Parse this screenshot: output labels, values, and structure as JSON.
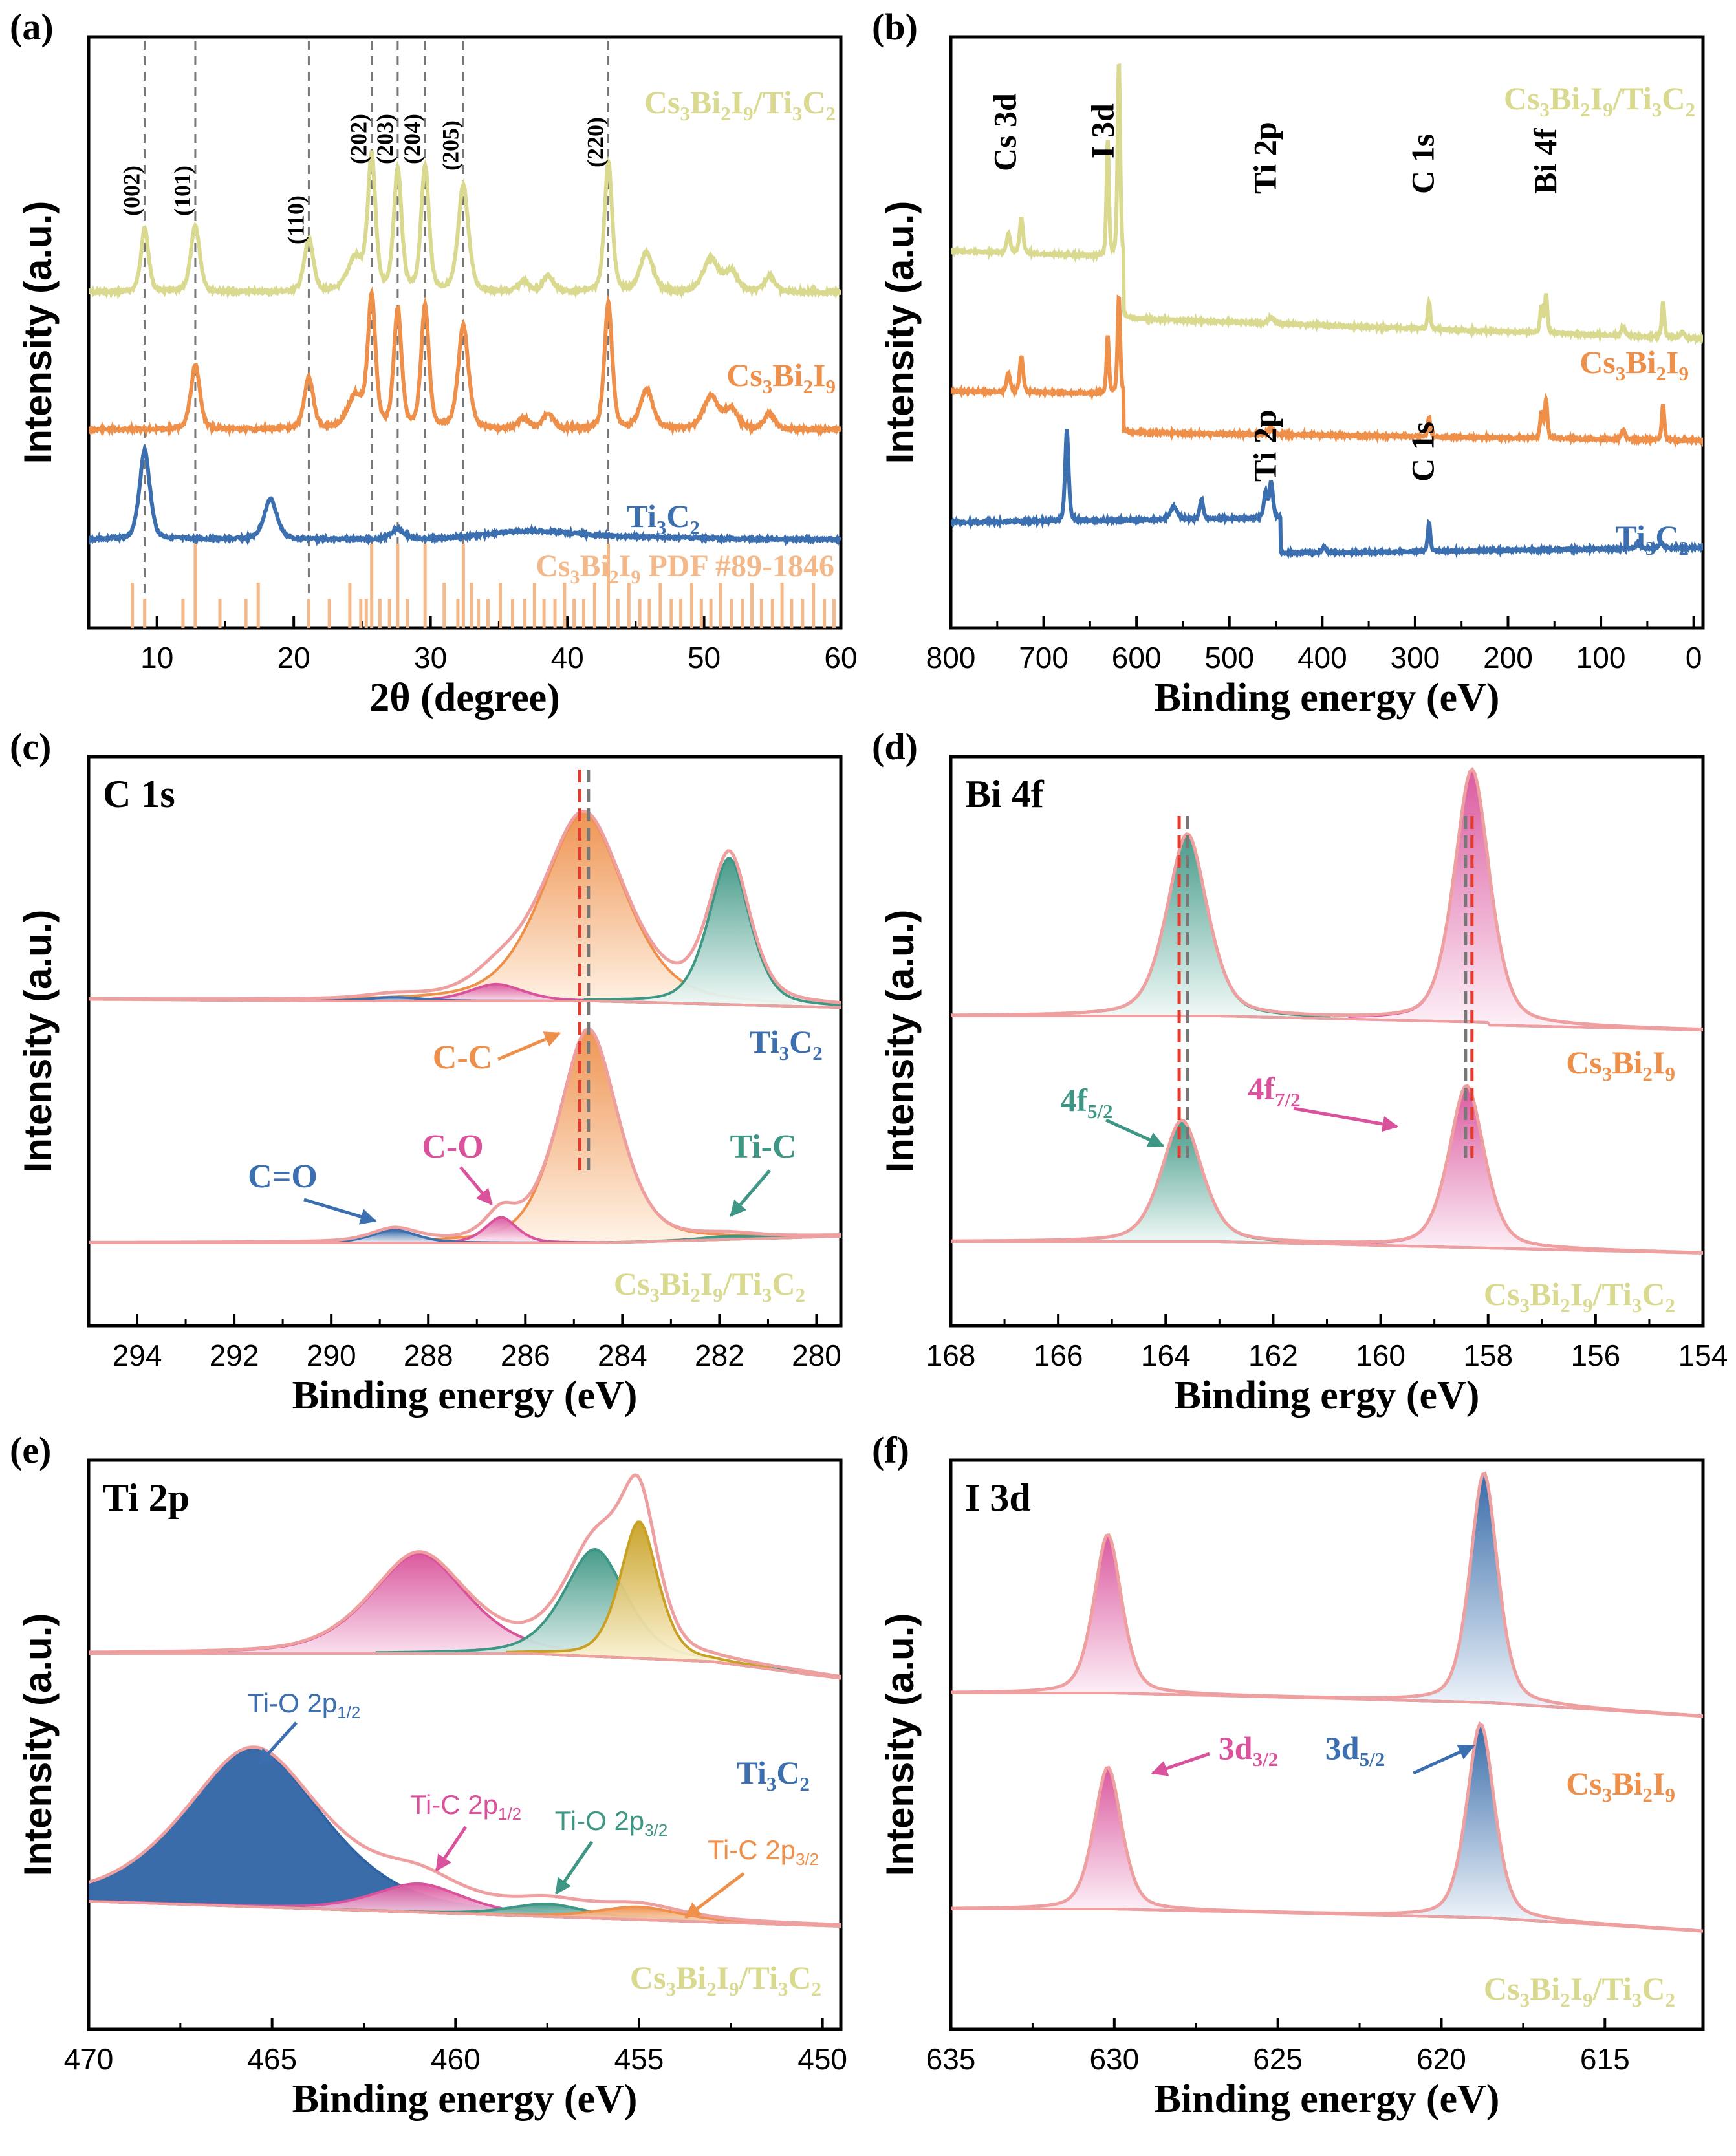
{
  "colors": {
    "yellow": "#d9d98f",
    "orange": "#ee8f4a",
    "blue": "#3b6faf",
    "gray": "#777",
    "red": "#e23b2f",
    "teal": "#3e9684",
    "pink": "#d9529b",
    "ltpink": "#eea0a0",
    "gold": "#c8a023",
    "bar": "#f3b98a",
    "navy": "#2e64a4"
  },
  "panels": [
    {
      "label": "(a)",
      "xlabel": "2θ  (degree)",
      "ylabel": "Intensity (a.u.)",
      "xlim": [
        5,
        60
      ],
      "ticks": [
        10,
        20,
        30,
        40,
        50,
        60
      ],
      "peaks": [
        {
          "x": 9.1,
          "hkl": "(002)"
        },
        {
          "x": 12.8,
          "hkl": "(101)"
        },
        {
          "x": 21.1,
          "hkl": "(110)"
        },
        {
          "x": 25.7,
          "hkl": "(202)"
        },
        {
          "x": 27.6,
          "hkl": "(203)"
        },
        {
          "x": 29.6,
          "hkl": "(204)"
        },
        {
          "x": 32.4,
          "hkl": "(205)"
        },
        {
          "x": 43.0,
          "hkl": "(220)"
        }
      ],
      "series": [
        {
          "name": "Cs3Bi2I9/Ti3C2",
          "parts": [
            [
              "Cs",
              ""
            ],
            [
              "3",
              "sub"
            ],
            [
              "Bi",
              ""
            ],
            [
              "2",
              "sub"
            ],
            [
              "I",
              ""
            ],
            [
              "9",
              "sub"
            ],
            [
              "/Ti",
              ""
            ],
            [
              "3",
              "sub"
            ],
            [
              "C",
              ""
            ],
            [
              "2",
              "sub"
            ]
          ]
        },
        {
          "name": "Cs3Bi2I9",
          "parts": [
            [
              "Cs",
              ""
            ],
            [
              "3",
              "sub"
            ],
            [
              "Bi",
              ""
            ],
            [
              "2",
              "sub"
            ],
            [
              "I",
              ""
            ],
            [
              "9",
              "sub"
            ]
          ]
        },
        {
          "name": "Ti3C2",
          "parts": [
            [
              "Ti",
              ""
            ],
            [
              "3",
              "sub"
            ],
            [
              "C",
              ""
            ],
            [
              "2",
              "sub"
            ]
          ]
        },
        {
          "name": "Cs3Bi2I9 PDF #89-1846",
          "parts": [
            [
              "Cs",
              ""
            ],
            [
              "3",
              "sub"
            ],
            [
              "Bi",
              ""
            ],
            [
              "2",
              "sub"
            ],
            [
              "I",
              ""
            ],
            [
              "9",
              "sub"
            ],
            [
              " PDF #89-1846",
              ""
            ]
          ]
        }
      ],
      "pdf_lines": [
        8.2,
        9.1,
        11.9,
        12.8,
        14.6,
        16.5,
        17.4,
        21.1,
        22.6,
        24.1,
        24.9,
        25.3,
        25.7,
        26.3,
        27.0,
        27.6,
        28.3,
        29.6,
        31.0,
        32.0,
        32.4,
        33.0,
        33.5,
        34.2,
        35.1,
        36.0,
        36.9,
        37.6,
        38.3,
        39.1,
        39.8,
        40.5,
        41.2,
        42.0,
        43.0,
        43.7,
        44.5,
        45.3,
        46.0,
        46.8,
        47.6,
        48.3,
        49.1,
        49.8,
        50.5,
        51.2,
        52.0,
        52.8,
        53.5,
        54.2,
        55.0,
        55.7,
        56.4,
        57.2,
        58.0,
        58.8,
        59.5
      ]
    },
    {
      "label": "(b)",
      "xlabel": "Binding energy (eV)",
      "ylabel": "Intensity (a.u.)",
      "xlim": [
        800,
        -10
      ],
      "ticks": [
        800,
        700,
        600,
        500,
        400,
        300,
        200,
        100,
        0
      ],
      "annotations": [
        "Cs 3d",
        "I 3d",
        "Ti 2p",
        "C 1s",
        "Bi 4f",
        "Ti 2p",
        "C 1s"
      ],
      "series": [
        {
          "name": "Cs3Bi2I9/Ti3C2",
          "parts": [
            [
              "Cs",
              ""
            ],
            [
              "3",
              "sub"
            ],
            [
              "Bi",
              ""
            ],
            [
              "2",
              "sub"
            ],
            [
              "I",
              ""
            ],
            [
              "9",
              "sub"
            ],
            [
              "/Ti",
              ""
            ],
            [
              "3",
              "sub"
            ],
            [
              "C",
              ""
            ],
            [
              "2",
              "sub"
            ]
          ]
        },
        {
          "name": "Cs3Bi2I9",
          "parts": [
            [
              "Cs",
              ""
            ],
            [
              "3",
              "sub"
            ],
            [
              "Bi",
              ""
            ],
            [
              "2",
              "sub"
            ],
            [
              "I",
              ""
            ],
            [
              "9",
              "sub"
            ]
          ]
        },
        {
          "name": "Ti3C2",
          "parts": [
            [
              "Ti",
              ""
            ],
            [
              "3",
              "sub"
            ],
            [
              "C",
              ""
            ],
            [
              "2",
              "sub"
            ]
          ]
        }
      ]
    },
    {
      "label": "(c)",
      "title": "C 1s",
      "xlabel": "Binding energy (eV)",
      "ylabel": "Intensity (a.u.)",
      "xlim": [
        295,
        279.5
      ],
      "ticks": [
        294,
        292,
        290,
        288,
        286,
        284,
        282,
        280
      ],
      "components": [
        "C-C",
        "C-O",
        "C=O",
        "Ti-C"
      ],
      "series": [
        {
          "name": "Ti3C2",
          "parts": [
            [
              "Ti",
              ""
            ],
            [
              "3",
              "sub"
            ],
            [
              "C",
              ""
            ],
            [
              "2",
              "sub"
            ]
          ]
        },
        {
          "name": "Cs3Bi2I9/Ti3C2",
          "parts": [
            [
              "Cs",
              ""
            ],
            [
              "3",
              "sub"
            ],
            [
              "Bi",
              ""
            ],
            [
              "2",
              "sub"
            ],
            [
              "I",
              ""
            ],
            [
              "9",
              "sub"
            ],
            [
              "/Ti",
              ""
            ],
            [
              "3",
              "sub"
            ],
            [
              "C",
              ""
            ],
            [
              "2",
              "sub"
            ]
          ]
        }
      ]
    },
    {
      "label": "(d)",
      "title": "Bi 4f",
      "xlabel": "Binding ergy (eV)",
      "ylabel": "Intensity (a.u.)",
      "xlim": [
        168,
        154
      ],
      "ticks": [
        168,
        166,
        164,
        162,
        160,
        158,
        156,
        154
      ],
      "components": [
        {
          "parts": [
            [
              "4f",
              ""
            ],
            [
              "5/2",
              "sub"
            ]
          ]
        },
        {
          "parts": [
            [
              "4f",
              ""
            ],
            [
              "7/2",
              "sub"
            ]
          ]
        }
      ],
      "series": [
        {
          "name": "Cs3Bi2I9",
          "parts": [
            [
              "Cs",
              ""
            ],
            [
              "3",
              "sub"
            ],
            [
              "Bi",
              ""
            ],
            [
              "2",
              "sub"
            ],
            [
              "I",
              ""
            ],
            [
              "9",
              "sub"
            ]
          ]
        },
        {
          "name": "Cs3Bi2I9/Ti3C2",
          "parts": [
            [
              "Cs",
              ""
            ],
            [
              "3",
              "sub"
            ],
            [
              "Bi",
              ""
            ],
            [
              "2",
              "sub"
            ],
            [
              "I",
              ""
            ],
            [
              "9",
              "sub"
            ],
            [
              "/Ti",
              ""
            ],
            [
              "3",
              "sub"
            ],
            [
              "C",
              ""
            ],
            [
              "2",
              "sub"
            ]
          ]
        }
      ]
    },
    {
      "label": "(e)",
      "title": "Ti 2p",
      "xlabel": "Binding energy (eV)",
      "ylabel": "Intensity (a.u.)",
      "xlim": [
        470,
        449.5
      ],
      "ticks": [
        470,
        465,
        460,
        455,
        450
      ],
      "components": [
        {
          "parts": [
            [
              "Ti-O 2p",
              ""
            ],
            [
              "1/2",
              "sub"
            ]
          ]
        },
        {
          "parts": [
            [
              "Ti-C 2p",
              ""
            ],
            [
              "1/2",
              "sub"
            ]
          ]
        },
        {
          "parts": [
            [
              "Ti-O 2p",
              ""
            ],
            [
              "3/2",
              "sub"
            ]
          ]
        },
        {
          "parts": [
            [
              "Ti-C 2p",
              ""
            ],
            [
              "3/2",
              "sub"
            ]
          ]
        }
      ],
      "series": [
        {
          "name": "Ti3C2",
          "parts": [
            [
              "Ti",
              ""
            ],
            [
              "3",
              "sub"
            ],
            [
              "C",
              ""
            ],
            [
              "2",
              "sub"
            ]
          ]
        },
        {
          "name": "Cs3Bi2I9/Ti3C2",
          "parts": [
            [
              "Cs",
              ""
            ],
            [
              "3",
              "sub"
            ],
            [
              "Bi",
              ""
            ],
            [
              "2",
              "sub"
            ],
            [
              "I",
              ""
            ],
            [
              "9",
              "sub"
            ],
            [
              "/Ti",
              ""
            ],
            [
              "3",
              "sub"
            ],
            [
              "C",
              ""
            ],
            [
              "2",
              "sub"
            ]
          ]
        }
      ]
    },
    {
      "label": "(f)",
      "title": "I 3d",
      "xlabel": "Binding energy (eV)",
      "ylabel": "Intensity (a.u.)",
      "xlim": [
        635,
        612
      ],
      "ticks": [
        635,
        630,
        625,
        620,
        615
      ],
      "components": [
        {
          "parts": [
            [
              "3d",
              ""
            ],
            [
              "3/2",
              "sub"
            ]
          ]
        },
        {
          "parts": [
            [
              "3d",
              ""
            ],
            [
              "5/2",
              "sub"
            ]
          ]
        }
      ],
      "series": [
        {
          "name": "Cs3Bi2I9",
          "parts": [
            [
              "Cs",
              ""
            ],
            [
              "3",
              "sub"
            ],
            [
              "Bi",
              ""
            ],
            [
              "2",
              "sub"
            ],
            [
              "I",
              ""
            ],
            [
              "9",
              "sub"
            ]
          ]
        },
        {
          "name": "Cs3Bi2I9/Ti3C2",
          "parts": [
            [
              "Cs",
              ""
            ],
            [
              "3",
              "sub"
            ],
            [
              "Bi",
              ""
            ],
            [
              "2",
              "sub"
            ],
            [
              "I",
              ""
            ],
            [
              "9",
              "sub"
            ],
            [
              "/Ti",
              ""
            ],
            [
              "3",
              "sub"
            ],
            [
              "C",
              ""
            ],
            [
              "2",
              "sub"
            ]
          ]
        }
      ]
    }
  ],
  "chart_data": [
    {
      "type": "line",
      "title": "(a) XRD",
      "xlabel": "2θ (degree)",
      "ylabel": "Intensity (a.u.)",
      "xlim": [
        5,
        60
      ],
      "series": [
        {
          "name": "Cs3Bi2I9/Ti3C2",
          "peaks_2theta": [
            9.1,
            12.8,
            21.1,
            25.7,
            27.6,
            29.6,
            32.4,
            43.0,
            45.8,
            50.5
          ]
        },
        {
          "name": "Cs3Bi2I9",
          "peaks_2theta": [
            12.8,
            21.1,
            25.7,
            27.6,
            29.6,
            32.4,
            43.0,
            45.8,
            50.5
          ]
        },
        {
          "name": "Ti3C2",
          "peaks_2theta": [
            9.1,
            18.3,
            27.6,
            37.0
          ]
        }
      ],
      "hkl": [
        "(002)",
        "(101)",
        "(110)",
        "(202)",
        "(203)",
        "(204)",
        "(205)",
        "(220)"
      ]
    },
    {
      "type": "line",
      "title": "(b) XPS survey",
      "xlabel": "Binding energy (eV)",
      "ylabel": "Intensity (a.u.)",
      "xlim": [
        800,
        0
      ],
      "peaks_eV": {
        "Cs 3d": [
          738,
          724
        ],
        "I 3d": [
          630,
          619
        ],
        "Ti 2p": [
          455
        ],
        "C 1s": [
          285
        ],
        "Bi 4f": [
          164,
          159
        ]
      }
    },
    {
      "type": "line",
      "title": "(c) C 1s",
      "xlim": [
        295,
        279.5
      ],
      "series": [
        {
          "name": "Ti3C2",
          "components": {
            "C-C": 284.8,
            "C-O": 286.6,
            "C=O": 288.7,
            "Ti-C": 281.8
          }
        },
        {
          "name": "Cs3Bi2I9/Ti3C2",
          "components": {
            "C-C": 284.7,
            "C-O": 286.5,
            "C=O": 288.7,
            "Ti-C": 281.8
          }
        }
      ]
    },
    {
      "type": "line",
      "title": "(d) Bi 4f",
      "xlim": [
        168,
        154
      ],
      "series": [
        {
          "name": "Cs3Bi2I9",
          "components": {
            "4f5/2": 163.6,
            "4f7/2": 158.3
          }
        },
        {
          "name": "Cs3Bi2I9/Ti3C2",
          "components": {
            "4f5/2": 163.7,
            "4f7/2": 158.4
          }
        }
      ]
    },
    {
      "type": "line",
      "title": "(e) Ti 2p",
      "xlim": [
        470,
        449.5
      ],
      "series": [
        {
          "name": "Ti3C2",
          "components": {
            "Ti-O 2p1/2": 461.0,
            "Ti-C 2p1/2": 461.0,
            "Ti-O 2p3/2": 456.2,
            "Ti-C 2p3/2": 455.0
          }
        },
        {
          "name": "Cs3Bi2I9/Ti3C2",
          "components": {
            "Ti-O 2p1/2": 465.5,
            "Ti-C 2p1/2": 461.0,
            "Ti-O 2p3/2": 457.5,
            "Ti-C 2p3/2": 455.0
          }
        }
      ]
    },
    {
      "type": "line",
      "title": "(f) I 3d",
      "xlim": [
        635,
        612
      ],
      "series": [
        {
          "name": "Cs3Bi2I9",
          "components": {
            "3d3/2": 630.2,
            "3d5/2": 618.7
          }
        },
        {
          "name": "Cs3Bi2I9/Ti3C2",
          "components": {
            "3d3/2": 630.2,
            "3d5/2": 618.8
          }
        }
      ]
    }
  ]
}
